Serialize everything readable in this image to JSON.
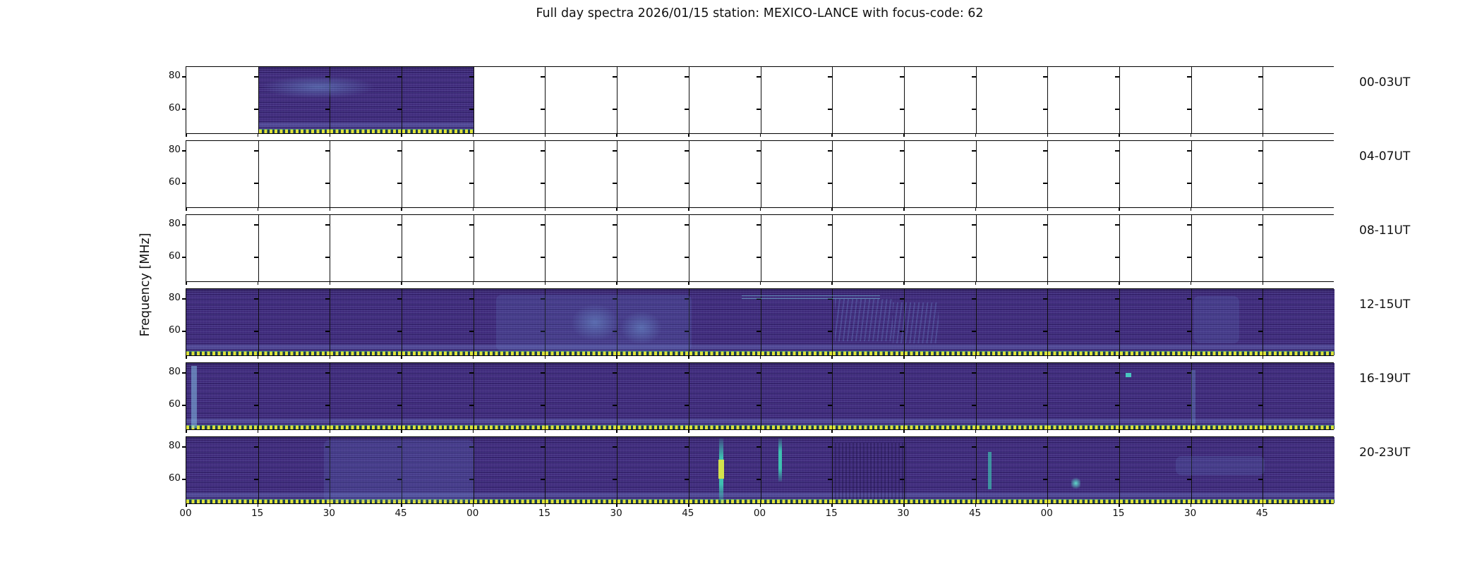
{
  "title": "Full day spectra 2026/01/15 station: MEXICO-LANCE with focus-code: 62",
  "y_axis": {
    "label": "Frequency [MHz]",
    "tick_labels": [
      "80",
      "60"
    ]
  },
  "x_axis": {
    "unit": "minutes past each hour",
    "tick_labels": [
      "00",
      "15",
      "30",
      "45",
      "00",
      "15",
      "30",
      "45",
      "00",
      "15",
      "30",
      "45",
      "00",
      "15",
      "30",
      "45"
    ]
  },
  "row_labels": [
    "00-03UT",
    "04-07UT",
    "08-11UT",
    "12-15UT",
    "16-19UT",
    "20-23UT"
  ],
  "chart_data": {
    "type": "heatmap",
    "subtype": "radio-spectrogram-daily-grid",
    "title": "Full day spectra 2026/01/15 station: MEXICO-LANCE with focus-code: 62",
    "station": "MEXICO-LANCE",
    "date": "2026/01/15",
    "focus_code": "62",
    "ylabel": "Frequency [MHz]",
    "y_ticks_mhz": [
      80,
      60
    ],
    "y_range_mhz_estimate": [
      45,
      88
    ],
    "row_duration_hours": 4,
    "n_columns_per_row": 16,
    "cell_duration_minutes": 15,
    "x_tick_labels": [
      "00",
      "15",
      "30",
      "45",
      "00",
      "15",
      "30",
      "45",
      "00",
      "15",
      "30",
      "45",
      "00",
      "15",
      "30",
      "45"
    ],
    "rows": [
      {
        "label": "00-03UT",
        "cells": [
          0,
          1,
          1,
          1,
          0,
          0,
          0,
          0,
          0,
          0,
          0,
          0,
          0,
          0,
          0,
          0
        ]
      },
      {
        "label": "04-07UT",
        "cells": [
          0,
          0,
          0,
          0,
          0,
          0,
          0,
          0,
          0,
          0,
          0,
          0,
          0,
          0,
          0,
          0
        ]
      },
      {
        "label": "08-11UT",
        "cells": [
          0,
          0,
          0,
          0,
          0,
          0,
          0,
          0,
          0,
          0,
          0,
          0,
          0,
          0,
          0,
          0
        ]
      },
      {
        "label": "12-15UT",
        "cells": [
          1,
          1,
          1,
          1,
          1,
          1,
          1,
          1,
          1,
          1,
          1,
          1,
          1,
          1,
          1,
          1
        ]
      },
      {
        "label": "16-19UT",
        "cells": [
          1,
          1,
          1,
          1,
          1,
          1,
          1,
          1,
          1,
          1,
          1,
          1,
          1,
          1,
          1,
          1
        ]
      },
      {
        "label": "20-23UT",
        "cells": [
          1,
          1,
          1,
          1,
          1,
          1,
          1,
          1,
          1,
          1,
          1,
          1,
          1,
          1,
          1,
          1
        ]
      }
    ],
    "coverage_notes": [
      {
        "row": "00-03UT",
        "note": "data present only 00:15-01:00 UT"
      },
      {
        "row": "04-07UT",
        "note": "no data"
      },
      {
        "row": "08-11UT",
        "note": "no data"
      },
      {
        "row": "12-15UT",
        "note": "full coverage; diffuse brighter patches around 13:20-13:40 UT and thin bright horizontal lines near 80 MHz around 14:00-14:30 UT"
      },
      {
        "row": "16-19UT",
        "note": "full coverage; bright streak at 16:00 UT and point-like bright pixel near 19:17 UT"
      },
      {
        "row": "20-23UT",
        "note": "full coverage; narrow vertical burst lines near 21:52 UT and 22:04 UT, fainter line near 22:47 UT and small bright blob near 23:05 UT"
      }
    ],
    "features": [
      {
        "r": 0,
        "x": 0.065,
        "y": 0.12,
        "w": 0.1,
        "h": 0.35,
        "cls": "patch"
      },
      {
        "r": 3,
        "x": 0.27,
        "y": 0.08,
        "w": 0.17,
        "h": 0.84,
        "cls": "tint"
      },
      {
        "r": 3,
        "x": 0.335,
        "y": 0.22,
        "w": 0.042,
        "h": 0.55,
        "cls": "patch"
      },
      {
        "r": 3,
        "x": 0.378,
        "y": 0.32,
        "w": 0.036,
        "h": 0.5,
        "cls": "patch"
      },
      {
        "r": 3,
        "x": 0.484,
        "y": 0.09,
        "w": 0.12,
        "h": 0.07,
        "cls": "hline"
      },
      {
        "r": 3,
        "x": 0.565,
        "y": 0.15,
        "w": 0.05,
        "h": 0.62,
        "cls": "wavy"
      },
      {
        "r": 3,
        "x": 0.615,
        "y": 0.2,
        "w": 0.04,
        "h": 0.6,
        "cls": "wavy"
      },
      {
        "r": 3,
        "x": 0.877,
        "y": 0.1,
        "w": 0.04,
        "h": 0.7,
        "cls": "tint"
      },
      {
        "r": 4,
        "x": 0.004,
        "y": 0.04,
        "w": 0.005,
        "h": 0.92,
        "cls": "vline"
      },
      {
        "r": 4,
        "x": 0.818,
        "y": 0.15,
        "w": 0.005,
        "h": 0.06,
        "cls": "dot"
      },
      {
        "r": 4,
        "x": 0.875,
        "y": 0.1,
        "w": 0.004,
        "h": 0.8,
        "cls": "vline-faint"
      },
      {
        "r": 5,
        "x": 0.12,
        "y": 0.04,
        "w": 0.13,
        "h": 0.92,
        "cls": "tint"
      },
      {
        "r": 5,
        "x": 0.464,
        "y": 0.02,
        "w": 0.004,
        "h": 0.96,
        "cls": "burst"
      },
      {
        "r": 5,
        "x": 0.4635,
        "y": 0.33,
        "w": 0.005,
        "h": 0.28,
        "cls": "burst-core"
      },
      {
        "r": 5,
        "x": 0.5155,
        "y": 0.02,
        "w": 0.0035,
        "h": 0.64,
        "cls": "burst"
      },
      {
        "r": 5,
        "x": 0.565,
        "y": 0.08,
        "w": 0.062,
        "h": 0.84,
        "cls": "darkcol"
      },
      {
        "r": 5,
        "x": 0.698,
        "y": 0.22,
        "w": 0.003,
        "h": 0.55,
        "cls": "burst-thin"
      },
      {
        "r": 5,
        "x": 0.771,
        "y": 0.58,
        "w": 0.008,
        "h": 0.2,
        "cls": "blob"
      },
      {
        "r": 5,
        "x": 0.862,
        "y": 0.28,
        "w": 0.077,
        "h": 0.28,
        "cls": "tint"
      }
    ]
  },
  "colors": {
    "background": "#ffffff",
    "axis": "#000000",
    "text": "#111111",
    "spectrogram_base": "#3f2a7a",
    "spectrogram_stripe_light": "#565a9e",
    "burst_teal": "#3ec8b4",
    "burst_core_yellow": "#d4e24c",
    "baseline_dots_yellow": "#dde239"
  }
}
